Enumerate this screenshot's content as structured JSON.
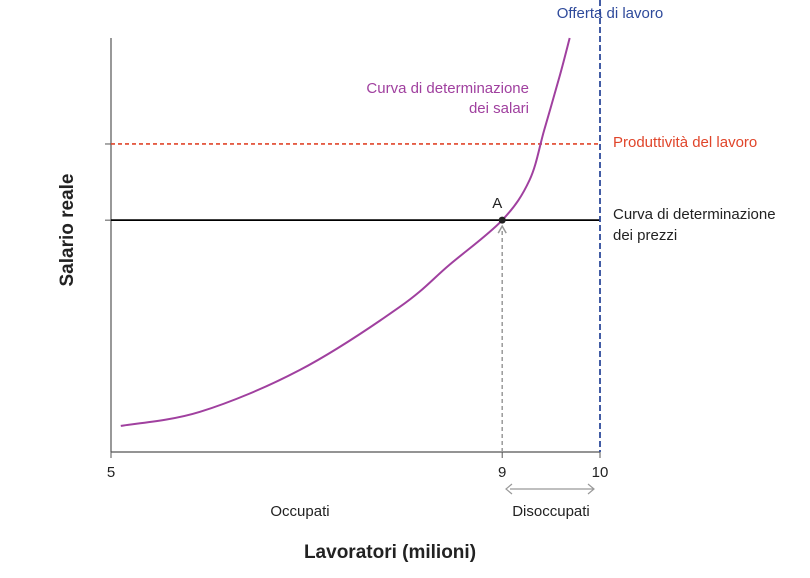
{
  "chart_data": {
    "type": "line",
    "x_label": "Lavoratori (milioni)",
    "y_label": "Salario reale",
    "xlim": [
      5,
      10
    ],
    "xticks": [
      5,
      9,
      10
    ],
    "ylim": [
      0,
      10
    ],
    "series": [
      {
        "label": [
          "Curva di determinazione",
          "dei salari"
        ],
        "color": "#a0409f",
        "x": [
          5.1,
          5.91,
          6.93,
          7.95,
          8.46,
          9,
          9.28,
          9.43,
          9.59,
          9.69
        ],
        "values": [
          0.63,
          0.97,
          1.98,
          3.5,
          4.52,
          5.6,
          6.57,
          7.78,
          9.1,
          10
        ]
      }
    ],
    "hlines": [
      {
        "label": [
          "Produttività del lavoro"
        ],
        "value": 7.44,
        "color": "#e0452a",
        "dashed": true
      },
      {
        "label": [
          "Curva di determinazione",
          "dei prezzi"
        ],
        "value": 5.6,
        "color": "#000000",
        "dashed": false
      }
    ],
    "vlines": [
      {
        "label": [
          "Offerta di lavoro"
        ],
        "value": 10,
        "color": "#2e4a9b",
        "dashed": true
      }
    ],
    "point": {
      "label": "A",
      "x": 9,
      "y": 5.6
    },
    "regions": [
      "Occupati",
      "Disoccupati"
    ]
  }
}
